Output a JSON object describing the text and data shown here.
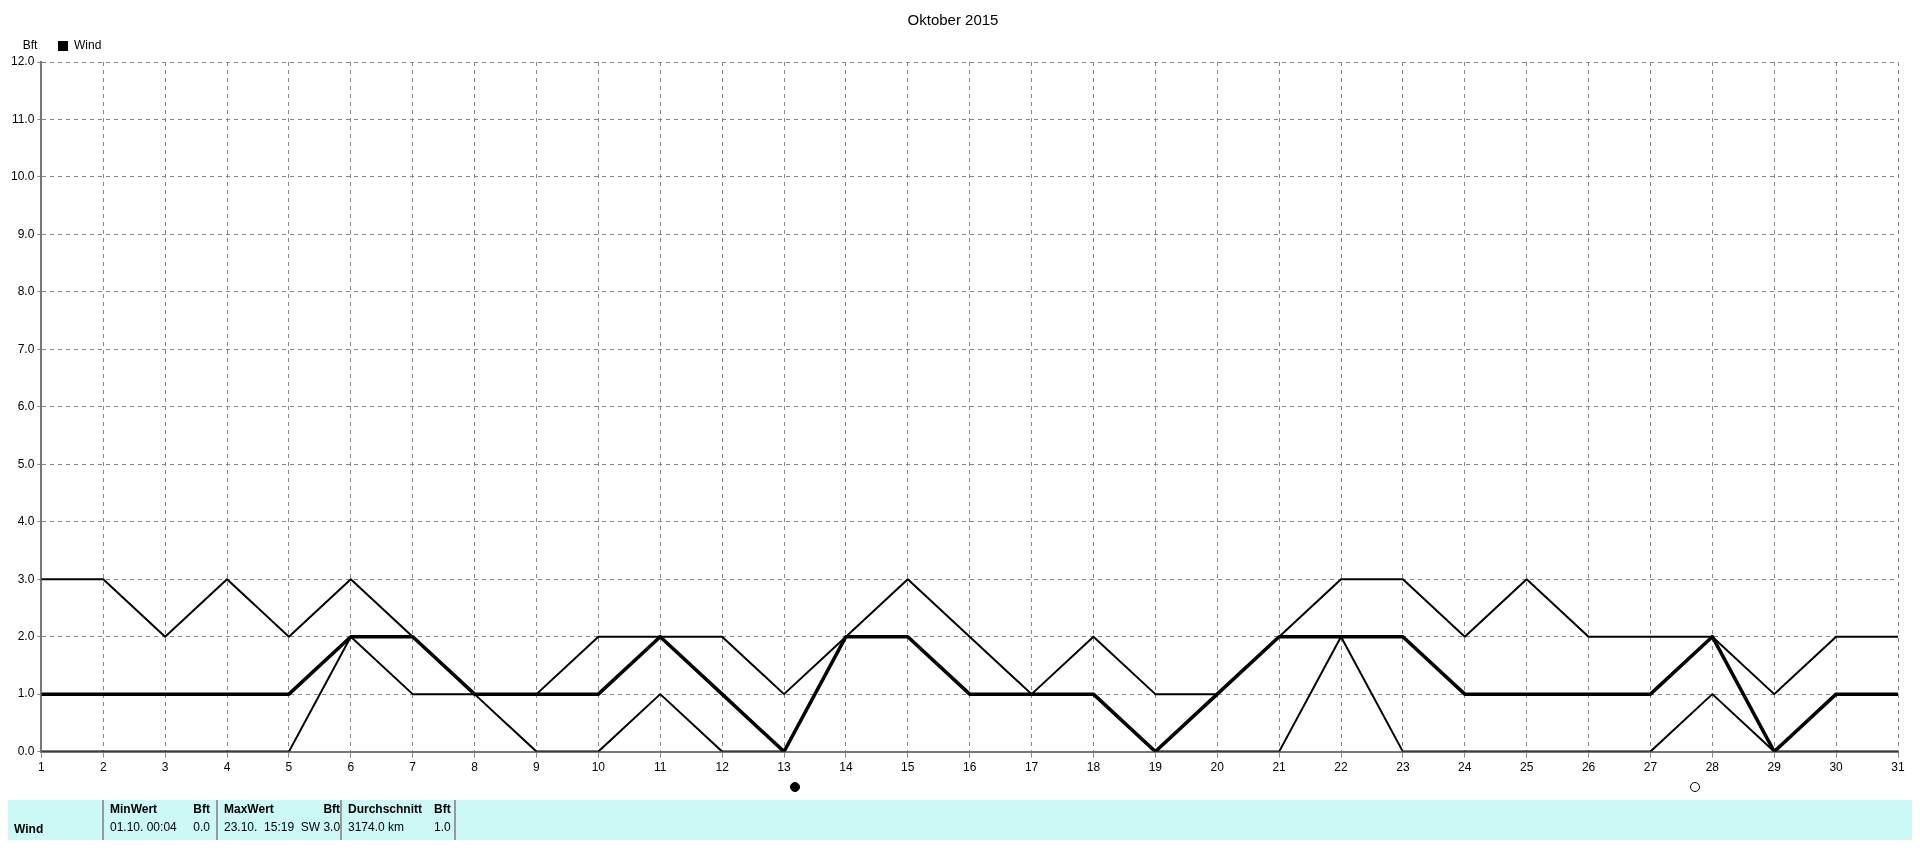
{
  "chart_data": {
    "type": "line",
    "title": "Oktober 2015",
    "ylabel": "Bft",
    "x": [
      1,
      2,
      3,
      4,
      5,
      6,
      7,
      8,
      9,
      10,
      11,
      12,
      13,
      14,
      15,
      16,
      17,
      18,
      19,
      20,
      21,
      22,
      23,
      24,
      25,
      26,
      27,
      28,
      29,
      30,
      31
    ],
    "series": [
      {
        "name": "Wind",
        "color": "#000000",
        "values": [
          1,
          1,
          1,
          1,
          1,
          2,
          2,
          1,
          1,
          1,
          2,
          1,
          0,
          2,
          2,
          1,
          1,
          1,
          0,
          1,
          2,
          2,
          2,
          1,
          1,
          1,
          1,
          2,
          0,
          1,
          1
        ]
      },
      {
        "color": "#000000",
        "values": [
          3,
          3,
          2,
          3,
          2,
          3,
          2,
          1,
          1,
          2,
          2,
          2,
          1,
          2,
          3,
          2,
          1,
          2,
          1,
          1,
          2,
          3,
          3,
          2,
          3,
          2,
          2,
          2,
          1,
          2,
          2
        ]
      },
      {
        "color": "#000000",
        "values": [
          0,
          0,
          0,
          0,
          0,
          2,
          1,
          1,
          0,
          0,
          1,
          0,
          0,
          2,
          2,
          1,
          1,
          1,
          0,
          0,
          0,
          2,
          0,
          0,
          0,
          0,
          0,
          1,
          0,
          0,
          0
        ]
      }
    ],
    "xlim": [
      1,
      31
    ],
    "xticks": [
      1,
      2,
      3,
      4,
      5,
      6,
      7,
      8,
      9,
      10,
      11,
      12,
      13,
      14,
      15,
      16,
      17,
      18,
      19,
      20,
      21,
      22,
      23,
      24,
      25,
      26,
      27,
      28,
      29,
      30,
      31
    ],
    "ylim": [
      0,
      12
    ],
    "yticks": [
      {
        "value": 0,
        "label": "0.0"
      },
      {
        "value": 1,
        "label": "1.0"
      },
      {
        "value": 2,
        "label": "2.0"
      },
      {
        "value": 3,
        "label": "3.0"
      },
      {
        "value": 4,
        "label": "4.0"
      },
      {
        "value": 5,
        "label": "5.0"
      },
      {
        "value": 6,
        "label": "6.0"
      },
      {
        "value": 7,
        "label": "7.0"
      },
      {
        "value": 8,
        "label": "8.0"
      },
      {
        "value": 9,
        "label": "9.0"
      },
      {
        "value": 10,
        "label": "10.0"
      },
      {
        "value": 11,
        "label": "11.0"
      },
      {
        "value": 12,
        "label": "12.0"
      }
    ],
    "grid": true,
    "legend": "top left",
    "marker": "none",
    "line_style": "solid",
    "annotations": [
      "Wind",
      "MinWert",
      "Bft",
      "01.10.  00:04",
      "0.0",
      "MaxWert",
      "Bft",
      "23.10.  15:19  SW 3.0",
      "Durchschnitt",
      "Bft",
      "3174.0 km",
      "1.0"
    ]
  }
}
